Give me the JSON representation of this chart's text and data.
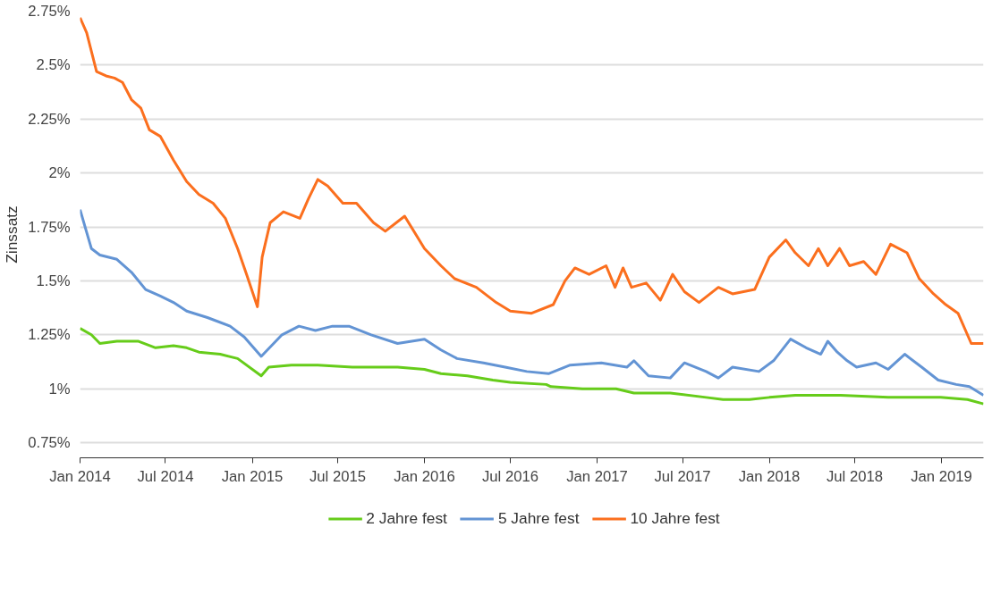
{
  "chart_data": {
    "type": "line",
    "ylabel": "Zinssatz",
    "grid": "y",
    "legend": "bottom",
    "line_style": "solid",
    "marker": "none",
    "xlim": [
      "2014-01-01",
      "2019-03-31"
    ],
    "xticks": [
      {
        "value": "2014-01-01",
        "label": "Jan 2014"
      },
      {
        "value": "2014-07-01",
        "label": "Jul 2014"
      },
      {
        "value": "2015-01-01",
        "label": "Jan 2015"
      },
      {
        "value": "2015-07-01",
        "label": "Jul 2015"
      },
      {
        "value": "2016-01-01",
        "label": "Jan 2016"
      },
      {
        "value": "2016-07-01",
        "label": "Jul 2016"
      },
      {
        "value": "2017-01-01",
        "label": "Jan 2017"
      },
      {
        "value": "2017-07-01",
        "label": "Jul 2017"
      },
      {
        "value": "2018-01-01",
        "label": "Jan 2018"
      },
      {
        "value": "2018-07-01",
        "label": "Jul 2018"
      },
      {
        "value": "2019-01-01",
        "label": "Jan 2019"
      }
    ],
    "ylim": [
      0.68,
      2.75
    ],
    "yticks": [
      {
        "value": 0.75,
        "label": "0.75%"
      },
      {
        "value": 1,
        "label": "1%"
      },
      {
        "value": 1.25,
        "label": "1.25%"
      },
      {
        "value": 1.5,
        "label": "1.5%"
      },
      {
        "value": 1.75,
        "label": "1.75%"
      },
      {
        "value": 2,
        "label": "2%"
      },
      {
        "value": 2.25,
        "label": "2.25%"
      },
      {
        "value": 2.5,
        "label": "2.5%"
      },
      {
        "value": 2.75,
        "label": "2.75%"
      }
    ],
    "series": [
      {
        "name": "2 Jahre fest",
        "color": "#66cc1a",
        "x": [
          "2014-01-01",
          "2014-01-25",
          "2014-02-12",
          "2014-03-20",
          "2014-05-05",
          "2014-06-10",
          "2014-07-18",
          "2014-08-15",
          "2014-09-10",
          "2014-10-25",
          "2014-12-01",
          "2015-01-20",
          "2015-02-05",
          "2015-03-25",
          "2015-05-20",
          "2015-08-01",
          "2015-11-05",
          "2016-01-01",
          "2016-02-05",
          "2016-04-01",
          "2016-05-25",
          "2016-07-01",
          "2016-09-15",
          "2016-09-25",
          "2016-12-01",
          "2017-02-10",
          "2017-03-20",
          "2017-06-05",
          "2017-08-20",
          "2017-09-25",
          "2017-11-20",
          "2018-01-01",
          "2018-02-25",
          "2018-06-01",
          "2018-09-10",
          "2018-12-10",
          "2018-12-30",
          "2019-02-25",
          "2019-03-31"
        ],
        "values": [
          1.28,
          1.25,
          1.21,
          1.22,
          1.22,
          1.19,
          1.2,
          1.19,
          1.17,
          1.16,
          1.14,
          1.06,
          1.1,
          1.11,
          1.11,
          1.1,
          1.1,
          1.09,
          1.07,
          1.06,
          1.04,
          1.03,
          1.02,
          1.01,
          1.0,
          1.0,
          0.98,
          0.98,
          0.96,
          0.95,
          0.95,
          0.96,
          0.97,
          0.97,
          0.96,
          0.96,
          0.96,
          0.95,
          0.93
        ]
      },
      {
        "name": "5 Jahre fest",
        "color": "#6394d4",
        "x": [
          "2014-01-01",
          "2014-01-25",
          "2014-02-12",
          "2014-03-20",
          "2014-04-20",
          "2014-05-20",
          "2014-06-20",
          "2014-07-18",
          "2014-08-15",
          "2014-09-28",
          "2014-11-15",
          "2014-12-15",
          "2015-01-20",
          "2015-03-05",
          "2015-04-10",
          "2015-05-15",
          "2015-06-20",
          "2015-07-25",
          "2015-09-10",
          "2015-11-05",
          "2016-01-01",
          "2016-02-05",
          "2016-03-10",
          "2016-05-05",
          "2016-06-20",
          "2016-08-05",
          "2016-09-20",
          "2016-11-05",
          "2017-01-10",
          "2017-03-05",
          "2017-03-20",
          "2017-04-20",
          "2017-06-05",
          "2017-07-05",
          "2017-08-20",
          "2017-09-15",
          "2017-10-15",
          "2017-12-10",
          "2018-01-10",
          "2018-02-15",
          "2018-03-20",
          "2018-04-20",
          "2018-05-05",
          "2018-05-25",
          "2018-06-15",
          "2018-07-05",
          "2018-08-15",
          "2018-09-10",
          "2018-10-15",
          "2018-11-20",
          "2018-12-25",
          "2019-02-01",
          "2019-03-01",
          "2019-03-31"
        ],
        "values": [
          1.83,
          1.65,
          1.62,
          1.6,
          1.54,
          1.46,
          1.43,
          1.4,
          1.36,
          1.33,
          1.29,
          1.24,
          1.15,
          1.25,
          1.29,
          1.27,
          1.29,
          1.29,
          1.25,
          1.21,
          1.23,
          1.18,
          1.14,
          1.12,
          1.1,
          1.08,
          1.07,
          1.11,
          1.12,
          1.1,
          1.13,
          1.06,
          1.05,
          1.12,
          1.08,
          1.05,
          1.1,
          1.08,
          1.13,
          1.23,
          1.19,
          1.16,
          1.22,
          1.17,
          1.13,
          1.1,
          1.12,
          1.09,
          1.16,
          1.1,
          1.04,
          1.02,
          1.01,
          0.97
        ]
      },
      {
        "name": "10 Jahre fest",
        "color": "#fb6f1e",
        "x": [
          "2014-01-01",
          "2014-01-15",
          "2014-02-05",
          "2014-02-25",
          "2014-03-15",
          "2014-04-01",
          "2014-04-20",
          "2014-05-10",
          "2014-05-28",
          "2014-06-20",
          "2014-07-18",
          "2014-08-15",
          "2014-09-10",
          "2014-10-10",
          "2014-11-05",
          "2014-12-01",
          "2014-12-20",
          "2015-01-12",
          "2015-01-22",
          "2015-02-08",
          "2015-03-08",
          "2015-04-12",
          "2015-04-30",
          "2015-05-20",
          "2015-06-10",
          "2015-07-12",
          "2015-08-10",
          "2015-09-15",
          "2015-10-10",
          "2015-11-20",
          "2016-01-01",
          "2016-02-05",
          "2016-03-05",
          "2016-04-20",
          "2016-06-01",
          "2016-07-01",
          "2016-08-15",
          "2016-09-30",
          "2016-10-25",
          "2016-11-15",
          "2016-12-15",
          "2017-01-20",
          "2017-02-08",
          "2017-02-25",
          "2017-03-15",
          "2017-04-15",
          "2017-05-15",
          "2017-06-10",
          "2017-07-05",
          "2017-08-05",
          "2017-09-15",
          "2017-10-15",
          "2017-12-01",
          "2018-01-01",
          "2018-02-05",
          "2018-02-25",
          "2018-03-25",
          "2018-04-15",
          "2018-05-05",
          "2018-05-30",
          "2018-06-20",
          "2018-07-20",
          "2018-08-15",
          "2018-09-15",
          "2018-10-20",
          "2018-11-15",
          "2018-12-15",
          "2019-01-10",
          "2019-02-05",
          "2019-03-05",
          "2019-03-31"
        ],
        "values": [
          2.72,
          2.65,
          2.47,
          2.45,
          2.44,
          2.42,
          2.34,
          2.3,
          2.2,
          2.17,
          2.06,
          1.96,
          1.9,
          1.86,
          1.79,
          1.65,
          1.53,
          1.38,
          1.61,
          1.77,
          1.82,
          1.79,
          1.88,
          1.97,
          1.94,
          1.86,
          1.86,
          1.77,
          1.73,
          1.8,
          1.65,
          1.57,
          1.51,
          1.47,
          1.4,
          1.36,
          1.35,
          1.39,
          1.5,
          1.56,
          1.53,
          1.57,
          1.47,
          1.56,
          1.47,
          1.49,
          1.41,
          1.53,
          1.45,
          1.4,
          1.47,
          1.44,
          1.46,
          1.61,
          1.69,
          1.63,
          1.57,
          1.65,
          1.57,
          1.65,
          1.57,
          1.59,
          1.53,
          1.67,
          1.63,
          1.51,
          1.44,
          1.39,
          1.35,
          1.21,
          1.21
        ]
      }
    ]
  }
}
